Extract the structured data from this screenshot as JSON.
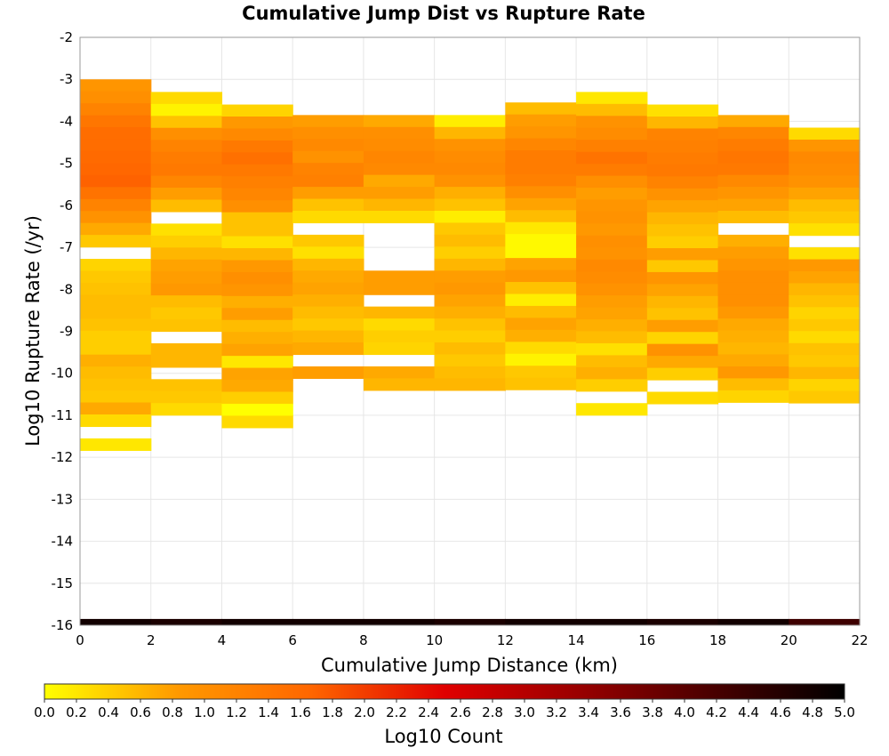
{
  "chart_data": {
    "type": "heatmap",
    "title": "Cumulative Jump Dist vs Rupture Rate",
    "xlabel": "Cumulative Jump Distance (km)",
    "ylabel": "Log10 Rupture Rate (/yr)",
    "xlim": [
      0,
      22
    ],
    "ylim": [
      -16,
      -2
    ],
    "x_ticks": [
      "0",
      "2",
      "4",
      "6",
      "8",
      "10",
      "12",
      "14",
      "16",
      "18",
      "20",
      "22"
    ],
    "y_ticks": [
      "-2",
      "-3",
      "-4",
      "-5",
      "-6",
      "-7",
      "-8",
      "-9",
      "-10",
      "-11",
      "-12",
      "-13",
      "-14",
      "-15",
      "-16"
    ],
    "grid": true,
    "x_bin_width_km": 2,
    "y_bin_width": 0.285,
    "colorbar": {
      "label": "Log10 Count",
      "range": [
        0,
        5
      ],
      "ticks": [
        "0.0",
        "0.2",
        "0.4",
        "0.6",
        "0.8",
        "1.0",
        "1.2",
        "1.4",
        "1.6",
        "1.8",
        "2.0",
        "2.2",
        "2.4",
        "2.6",
        "2.8",
        "3.0",
        "3.2",
        "3.4",
        "3.6",
        "3.8",
        "4.0",
        "4.2",
        "4.4",
        "4.6",
        "4.8",
        "5.0"
      ],
      "colors": [
        "#ffff00",
        "#ff9900",
        "#ff6600",
        "#e00000",
        "#9a0000",
        "#4a0000",
        "#000000"
      ]
    },
    "base_row": {
      "y_from": -16.0,
      "y_to": -15.85,
      "values": [
        4.8,
        4.7,
        4.8,
        4.8,
        4.8,
        4.7,
        4.8,
        4.8,
        4.7,
        4.8,
        4.3
      ]
    },
    "columns": [
      {
        "x_from": 0,
        "x_to": 2,
        "y_top": -3.0,
        "values": [
          0.9,
          1.0,
          1.2,
          1.4,
          1.55,
          1.55,
          1.6,
          1.65,
          1.7,
          1.45,
          1.2,
          0.95,
          0.7,
          0.45,
          null,
          0.35,
          0.45,
          0.5,
          0.55,
          0.55,
          0.5,
          0.4,
          0.4,
          0.65,
          0.55,
          0.5,
          0.45,
          0.7,
          0.3,
          null,
          0.2
        ]
      },
      {
        "x_from": 2,
        "x_to": 4,
        "y_top": -3.3,
        "values": [
          0.3,
          0.1,
          0.5,
          1.0,
          1.2,
          1.3,
          1.35,
          1.15,
          0.8,
          0.55,
          null,
          0.25,
          0.4,
          0.6,
          0.75,
          0.8,
          0.85,
          0.55,
          0.45,
          0.5,
          null,
          0.6,
          0.6,
          null,
          0.5,
          0.45,
          0.3
        ]
      },
      {
        "x_from": 4,
        "x_to": 6,
        "y_top": -3.6,
        "values": [
          0.35,
          0.85,
          1.1,
          1.35,
          1.5,
          1.35,
          1.25,
          1.15,
          1.0,
          0.5,
          0.5,
          0.25,
          0.6,
          0.85,
          1.0,
          0.9,
          0.65,
          0.8,
          0.55,
          0.65,
          0.75,
          0.2,
          0.75,
          0.7,
          0.4,
          0.0,
          0.3
        ]
      },
      {
        "x_from": 6,
        "x_to": 8,
        "y_top": -3.85,
        "values": [
          0.8,
          1.0,
          1.1,
          0.95,
          1.2,
          1.25,
          0.8,
          0.5,
          0.3,
          null,
          0.45,
          0.25,
          0.6,
          0.7,
          0.75,
          0.65,
          0.55,
          0.45,
          0.6,
          0.7,
          null,
          0.8
        ]
      },
      {
        "x_from": 8,
        "x_to": 10,
        "y_top": -3.85,
        "values": [
          0.7,
          1.0,
          1.05,
          1.15,
          1.1,
          0.7,
          0.8,
          0.6,
          0.3,
          null,
          null,
          null,
          null,
          0.8,
          0.8,
          null,
          0.6,
          0.3,
          0.4,
          0.35,
          null,
          0.7,
          0.6
        ]
      },
      {
        "x_from": 10,
        "x_to": 12,
        "y_top": -3.85,
        "values": [
          0.15,
          0.6,
          0.95,
          1.05,
          1.1,
          0.95,
          0.65,
          0.5,
          0.15,
          0.45,
          0.55,
          0.4,
          0.6,
          0.8,
          0.85,
          0.75,
          0.65,
          0.5,
          0.4,
          0.55,
          0.45,
          0.55,
          0.6
        ]
      },
      {
        "x_from": 12,
        "x_to": 14,
        "y_top": -3.55,
        "values": [
          0.55,
          0.8,
          0.9,
          1.15,
          1.3,
          1.3,
          1.25,
          1.0,
          0.75,
          0.55,
          0.2,
          0.05,
          0.05,
          0.75,
          0.85,
          0.5,
          0.15,
          0.55,
          0.75,
          0.65,
          0.3,
          0.1,
          0.45,
          0.5
        ]
      },
      {
        "x_from": 14,
        "x_to": 16,
        "y_top": -3.3,
        "values": [
          0.2,
          0.55,
          0.95,
          1.05,
          1.25,
          1.45,
          1.3,
          1.0,
          0.8,
          0.9,
          0.95,
          0.85,
          1.0,
          0.95,
          1.1,
          1.05,
          0.95,
          0.8,
          0.75,
          0.65,
          0.55,
          0.25,
          0.55,
          0.65,
          0.4,
          null,
          0.2
        ]
      },
      {
        "x_from": 16,
        "x_to": 18,
        "y_top": -3.6,
        "values": [
          0.25,
          0.6,
          1.2,
          1.25,
          1.3,
          1.35,
          1.2,
          0.95,
          0.75,
          0.6,
          0.5,
          0.4,
          0.8,
          0.45,
          0.9,
          0.75,
          0.6,
          0.5,
          0.8,
          0.35,
          0.95,
          0.7,
          0.4,
          null,
          0.3
        ]
      },
      {
        "x_from": 18,
        "x_to": 20,
        "y_top": -3.85,
        "values": [
          0.7,
          1.15,
          1.3,
          1.4,
          1.35,
          1.1,
          0.9,
          0.75,
          0.55,
          null,
          0.65,
          0.8,
          0.9,
          1.0,
          1.0,
          1.0,
          0.85,
          0.7,
          0.65,
          0.6,
          0.7,
          0.85,
          0.55,
          0.35
        ]
      },
      {
        "x_from": 20,
        "x_to": 22,
        "y_top": -4.15,
        "values": [
          0.3,
          0.9,
          1.1,
          1.05,
          0.95,
          0.75,
          0.55,
          0.45,
          0.25,
          null,
          0.25,
          0.85,
          0.75,
          0.6,
          0.5,
          0.35,
          0.45,
          0.3,
          0.5,
          0.45,
          0.6,
          0.35,
          0.45
        ]
      }
    ]
  }
}
